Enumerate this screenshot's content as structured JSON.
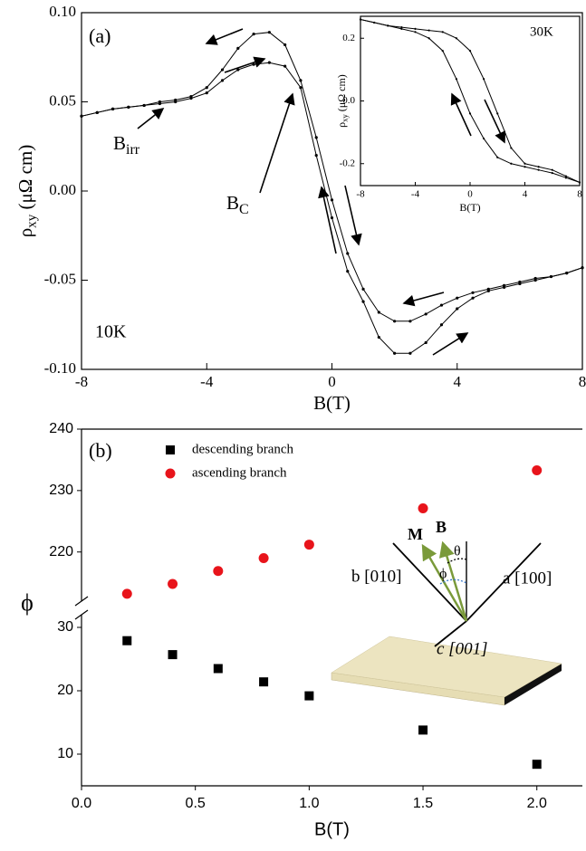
{
  "chart_data": [
    {
      "type": "line",
      "panel_label": "(a)",
      "annotations": {
        "temperature": "10K",
        "b_irr": {
          "main": "B",
          "sub": "irr"
        },
        "b_c": {
          "main": "B",
          "sub": "C"
        }
      },
      "x_label": "B(T)",
      "y_label": {
        "main": "ρ",
        "sub": "xy",
        "unit": "(μΩ cm)"
      },
      "x": [
        -8,
        -7.5,
        -7,
        -6.5,
        -6,
        -5.5,
        -5,
        -4.5,
        -4,
        -3.5,
        -3,
        -2.5,
        -2,
        -1.5,
        -1,
        -0.5,
        0,
        0.5,
        1,
        1.5,
        2,
        2.5,
        3,
        3.5,
        4,
        4.5,
        5,
        5.5,
        6,
        6.5,
        7,
        7.5,
        8
      ],
      "series": [
        {
          "color": "#000000",
          "values": [
            0.042,
            0.044,
            0.046,
            0.047,
            0.048,
            0.05,
            0.051,
            0.053,
            0.058,
            0.068,
            0.08,
            0.088,
            0.089,
            0.082,
            0.062,
            0.03,
            -0.005,
            -0.035,
            -0.055,
            -0.068,
            -0.073,
            -0.073,
            -0.069,
            -0.064,
            -0.06,
            -0.057,
            -0.055,
            -0.053,
            -0.051,
            -0.049,
            -0.048,
            -0.046,
            -0.043
          ]
        },
        {
          "color": "#000000",
          "values": [
            0.042,
            0.044,
            0.046,
            0.047,
            0.048,
            0.049,
            0.05,
            0.052,
            0.055,
            0.062,
            0.068,
            0.071,
            0.072,
            0.07,
            0.058,
            0.02,
            -0.015,
            -0.045,
            -0.062,
            -0.082,
            -0.091,
            -0.091,
            -0.085,
            -0.075,
            -0.066,
            -0.06,
            -0.056,
            -0.054,
            -0.052,
            -0.05,
            -0.048,
            -0.046,
            -0.043
          ]
        }
      ],
      "xlim": [
        -8,
        8
      ],
      "ylim": [
        -0.1,
        0.1
      ],
      "xticks": [
        -8,
        -4,
        0,
        4,
        8
      ],
      "yticks": [
        {
          "value": -0.1,
          "label": "-0.10"
        },
        -0.05,
        {
          "value": 0,
          "label": "0.00"
        },
        0.05,
        {
          "value": 0.1,
          "label": "0.10"
        }
      ]
    },
    {
      "type": "line",
      "annotation": "30K",
      "x_label": "B(T)",
      "y_label": {
        "main": "ρ",
        "sub": "xy",
        "unit": "(μΩ cm)"
      },
      "x": [
        -8,
        -7,
        -6,
        -5,
        -4,
        -3,
        -2,
        -1,
        0,
        1,
        2,
        3,
        4,
        5,
        6,
        7,
        8
      ],
      "series": [
        {
          "color": "#000000",
          "values": [
            0.26,
            0.25,
            0.24,
            0.23,
            0.22,
            0.2,
            0.16,
            0.07,
            -0.04,
            -0.12,
            -0.18,
            -0.2,
            -0.21,
            -0.22,
            -0.23,
            -0.245,
            -0.26
          ]
        },
        {
          "color": "#000000",
          "values": [
            0.26,
            0.25,
            0.24,
            0.235,
            0.23,
            0.225,
            0.22,
            0.2,
            0.16,
            0.07,
            -0.04,
            -0.15,
            -0.2,
            -0.21,
            -0.22,
            -0.24,
            -0.26
          ]
        }
      ],
      "xlim": [
        -8,
        8
      ],
      "ylim": [
        -0.27,
        0.27
      ],
      "xticks": [
        -8,
        -4,
        0,
        4,
        8
      ],
      "yticks": [
        -0.2,
        {
          "value": 0,
          "label": "0.0"
        },
        0.2
      ]
    },
    {
      "type": "scatter",
      "panel_label": "(b)",
      "x_label": "B(T)",
      "y_label": "ϕ",
      "x": [
        0.2,
        0.4,
        0.6,
        0.8,
        1.0,
        1.5,
        2.0
      ],
      "series": [
        {
          "name": "descending branch",
          "color": "#000000",
          "marker": "square",
          "values": [
            27.9,
            25.7,
            23.5,
            21.4,
            19.2,
            13.8,
            8.4
          ]
        },
        {
          "name": "ascending branch",
          "color": "#e8141b",
          "marker": "circle",
          "values": [
            213.2,
            214.8,
            216.9,
            219.0,
            221.2,
            227.1,
            233.3
          ]
        }
      ],
      "xlim": [
        0,
        2.2
      ],
      "xticks": [
        {
          "value": 0,
          "label": "0.0"
        },
        0.5,
        {
          "value": 1,
          "label": "1.0"
        },
        1.5,
        {
          "value": 2,
          "label": "2.0"
        }
      ],
      "y_segments": [
        {
          "ylim": [
            5,
            32
          ],
          "yticks": [
            10,
            20,
            30
          ]
        },
        {
          "ylim": [
            212,
            240
          ],
          "yticks": [
            220,
            230,
            240
          ]
        }
      ],
      "diagram": {
        "m": "M",
        "b": "B",
        "theta": "θ",
        "phi": "ϕ",
        "a_axis": "a [100]",
        "b_axis": "b [010]",
        "c_axis": "c [001]"
      }
    }
  ]
}
